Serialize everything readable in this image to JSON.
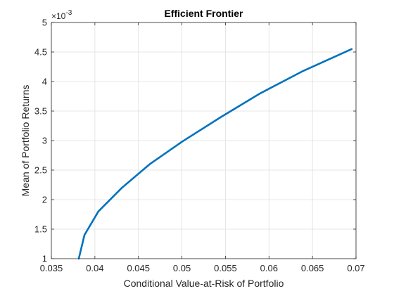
{
  "chart_data": {
    "type": "line",
    "title": "Efficient Frontier",
    "xlabel": "Conditional Value-at-Risk of Portfolio",
    "ylabel": "Mean of Portfolio Returns",
    "xlim": [
      0.035,
      0.07
    ],
    "ylim": [
      1,
      5
    ],
    "y_exponent_label": "×10",
    "y_exponent_power": "-3",
    "grid": true,
    "x_ticks": [
      0.035,
      0.04,
      0.045,
      0.05,
      0.055,
      0.06,
      0.065,
      0.07
    ],
    "x_tick_labels": [
      "0.035",
      "0.04",
      "0.045",
      "0.05",
      "0.055",
      "0.06",
      "0.065",
      "0.07"
    ],
    "y_ticks": [
      1,
      1.5,
      2,
      2.5,
      3,
      3.5,
      4,
      4.5,
      5
    ],
    "y_tick_labels": [
      "1",
      "1.5",
      "2",
      "2.5",
      "3",
      "3.5",
      "4",
      "4.5",
      "5"
    ],
    "series": [
      {
        "color": "#0072BD",
        "x": [
          0.03815,
          0.0388,
          0.0404,
          0.0431,
          0.0463,
          0.05,
          0.0545,
          0.059,
          0.0638,
          0.0695
        ],
        "y": [
          1.0,
          1.4,
          1.8,
          2.2,
          2.6,
          2.98,
          3.4,
          3.8,
          4.17,
          4.55
        ]
      }
    ]
  }
}
